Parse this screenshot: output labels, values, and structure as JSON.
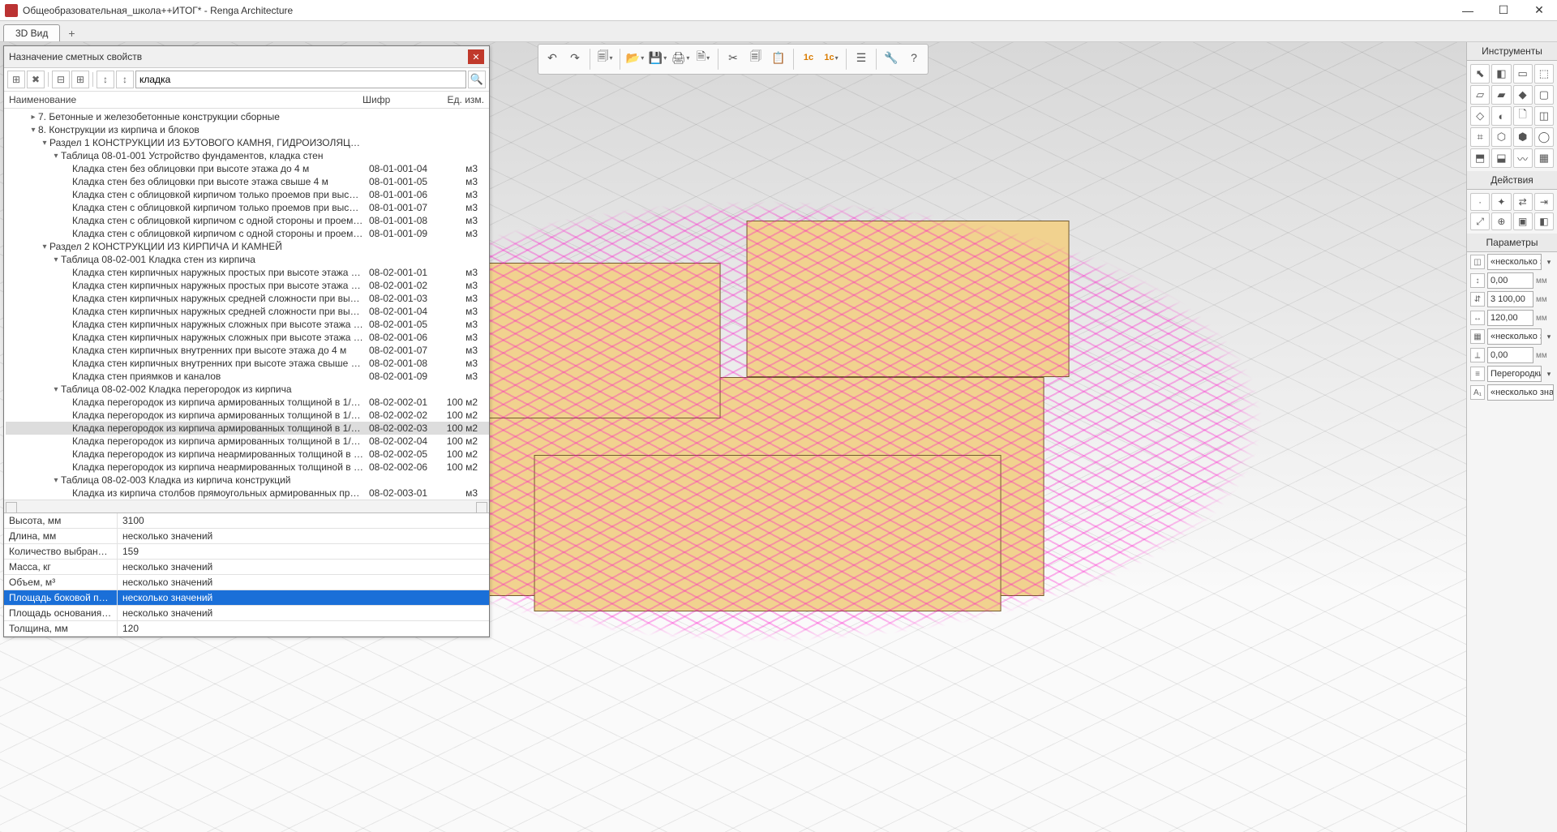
{
  "window": {
    "title": "Общеобразовательная_школа++ИТОГ* - Renga Architecture"
  },
  "tabs": {
    "active": "3D Вид"
  },
  "colors": {
    "magenta": "#ff00c8",
    "buildFill": "#f1d28f",
    "buildStroke": "#735a2f",
    "dlgClose": "#c0392b",
    "rowSel": "#1a6fd8"
  },
  "topToolbar": [
    {
      "icon": "↶",
      "name": "undo"
    },
    {
      "icon": "↷",
      "name": "redo"
    },
    {
      "sep": true
    },
    {
      "icon": "🗐",
      "name": "copy-view",
      "dd": true
    },
    {
      "sep": true
    },
    {
      "icon": "📂",
      "name": "open",
      "dd": true
    },
    {
      "icon": "💾",
      "name": "save",
      "dd": true
    },
    {
      "icon": "🖨",
      "name": "print",
      "dd": true
    },
    {
      "icon": "🗎",
      "name": "sheet",
      "dd": true
    },
    {
      "sep": true
    },
    {
      "icon": "✂",
      "name": "cut"
    },
    {
      "icon": "🗐",
      "name": "copy"
    },
    {
      "icon": "📋",
      "name": "paste"
    },
    {
      "sep": true
    },
    {
      "icon": "1c",
      "name": "export-1c",
      "style": "color:#d97b00;font-weight:bold;font-size:11px;"
    },
    {
      "icon": "1c",
      "name": "export-1c-2",
      "style": "color:#d97b00;font-weight:bold;font-size:11px;",
      "dd": true
    },
    {
      "sep": true
    },
    {
      "icon": "☰",
      "name": "properties"
    },
    {
      "sep": true
    },
    {
      "icon": "🔧",
      "name": "settings"
    },
    {
      "icon": "?",
      "name": "help"
    }
  ],
  "toolsPanel": {
    "title": "Инструменты",
    "items": [
      "⬉",
      "◧",
      "▭",
      "⬚",
      "▱",
      "▰",
      "◆",
      "▢",
      "◇",
      "◐",
      "🗋",
      "◫",
      "⌗",
      "⬡",
      "⬢",
      "◯",
      "⬒",
      "⬓",
      "〰",
      "▦"
    ]
  },
  "actionsPanel": {
    "title": "Действия",
    "items": [
      "·",
      "✦",
      "⇄",
      "⇥",
      "⤢",
      "⊕",
      "▣",
      "◧"
    ]
  },
  "paramsPanel": {
    "title": "Параметры",
    "rows": [
      {
        "icon": "◫",
        "value": "«несколько зн",
        "dd": true
      },
      {
        "icon": "↕",
        "value": "0,00",
        "unit": "мм"
      },
      {
        "icon": "⇵",
        "value": "3 100,00",
        "unit": "мм"
      },
      {
        "icon": "↔",
        "value": "120,00",
        "unit": "мм"
      },
      {
        "icon": "▦",
        "value": "«несколько зн",
        "dd": true
      },
      {
        "icon": "⟂",
        "value": "0,00",
        "unit": "мм"
      },
      {
        "icon": "≡",
        "value": "Перегородки",
        "dd": true
      },
      {
        "icon": "A₁",
        "value": "«несколько знач"
      }
    ]
  },
  "dialog": {
    "title": "Назначение сметных свойств",
    "toolbar": [
      "⊞",
      "✖",
      "",
      "⊟",
      "⊞",
      "",
      "↕",
      "↕"
    ],
    "search": "кладка",
    "headers": {
      "name": "Наименование",
      "code": "Шифр",
      "unit": "Ед. изм."
    },
    "tree": [
      {
        "d": 2,
        "car": ">",
        "nm": "7. Бетонные и железобетонные конструкции сборные"
      },
      {
        "d": 2,
        "car": "v",
        "nm": "8. Конструкции из кирпича и блоков"
      },
      {
        "d": 3,
        "car": "v",
        "nm": "Раздел 1 КОНСТРУКЦИИ ИЗ БУТОВОГО КАМНЯ, ГИДРОИЗОЛЯЦИЯ И …"
      },
      {
        "d": 4,
        "car": "v",
        "nm": "Таблица 08-01-001 Устройство фундаментов, кладка стен"
      },
      {
        "d": 5,
        "nm": "Кладка стен без облицовки при высоте этажа до 4 м",
        "code": "08-01-001-04",
        "unit": "м3"
      },
      {
        "d": 5,
        "nm": "Кладка стен без облицовки при высоте этажа свыше 4 м",
        "code": "08-01-001-05",
        "unit": "м3"
      },
      {
        "d": 5,
        "nm": "Кладка стен с облицовкой кирпичом только проемов при высо…",
        "code": "08-01-001-06",
        "unit": "м3"
      },
      {
        "d": 5,
        "nm": "Кладка стен с облицовкой кирпичом только проемов при высо…",
        "code": "08-01-001-07",
        "unit": "м3"
      },
      {
        "d": 5,
        "nm": "Кладка стен с облицовкой кирпичом с одной стороны и проем…",
        "code": "08-01-001-08",
        "unit": "м3"
      },
      {
        "d": 5,
        "nm": "Кладка стен с облицовкой кирпичом с одной стороны и проем…",
        "code": "08-01-001-09",
        "unit": "м3"
      },
      {
        "d": 3,
        "car": "v",
        "nm": "Раздел 2 КОНСТРУКЦИИ ИЗ КИРПИЧА И КАМНЕЙ"
      },
      {
        "d": 4,
        "car": "v",
        "nm": "Таблица 08-02-001 Кладка стен из кирпича"
      },
      {
        "d": 5,
        "nm": "Кладка стен кирпичных наружных простых при высоте этажа до…",
        "code": "08-02-001-01",
        "unit": "м3"
      },
      {
        "d": 5,
        "nm": "Кладка стен кирпичных наружных простых при высоте этажа св…",
        "code": "08-02-001-02",
        "unit": "м3"
      },
      {
        "d": 5,
        "nm": "Кладка стен кирпичных наружных средней сложности при высо…",
        "code": "08-02-001-03",
        "unit": "м3"
      },
      {
        "d": 5,
        "nm": "Кладка стен кирпичных наружных средней сложности при высо…",
        "code": "08-02-001-04",
        "unit": "м3"
      },
      {
        "d": 5,
        "nm": "Кладка стен кирпичных наружных сложных при высоте этажа до…",
        "code": "08-02-001-05",
        "unit": "м3"
      },
      {
        "d": 5,
        "nm": "Кладка стен кирпичных наружных сложных при высоте этажа св…",
        "code": "08-02-001-06",
        "unit": "м3"
      },
      {
        "d": 5,
        "nm": "Кладка стен кирпичных внутренних при высоте этажа до 4 м",
        "code": "08-02-001-07",
        "unit": "м3"
      },
      {
        "d": 5,
        "nm": "Кладка стен кирпичных внутренних при высоте этажа свыше 5 м",
        "code": "08-02-001-08",
        "unit": "м3"
      },
      {
        "d": 5,
        "nm": "Кладка стен приямков и каналов",
        "code": "08-02-001-09",
        "unit": "м3"
      },
      {
        "d": 4,
        "car": "v",
        "nm": "Таблица 08-02-002 Кладка перегородок из кирпича"
      },
      {
        "d": 5,
        "nm": "Кладка перегородок из кирпича армированных толщиной в 1/4 …",
        "code": "08-02-002-01",
        "unit": "100 м2"
      },
      {
        "d": 5,
        "nm": "Кладка перегородок из кирпича армированных толщиной в 1/4 …",
        "code": "08-02-002-02",
        "unit": "100 м2"
      },
      {
        "d": 5,
        "nm": "Кладка перегородок из кирпича армированных толщиной в 1/2 …",
        "code": "08-02-002-03",
        "unit": "100 м2",
        "sel": true
      },
      {
        "d": 5,
        "nm": "Кладка перегородок из кирпича армированных толщиной в 1/2 …",
        "code": "08-02-002-04",
        "unit": "100 м2"
      },
      {
        "d": 5,
        "nm": "Кладка перегородок из кирпича неармированных толщиной в 1…",
        "code": "08-02-002-05",
        "unit": "100 м2"
      },
      {
        "d": 5,
        "nm": "Кладка перегородок из кирпича неармированных толщиной в 1…",
        "code": "08-02-002-06",
        "unit": "100 м2"
      },
      {
        "d": 4,
        "car": "v",
        "nm": "Таблица 08-02-003 Кладка из кирпича конструкций"
      },
      {
        "d": 5,
        "nm": "Кладка из кирпича столбов прямоугольных армированных при …",
        "code": "08-02-003-01",
        "unit": "м3"
      },
      {
        "d": 5,
        "nm": "Кладка из кирпича столбов прямоугольных армированных при …",
        "code": "08-02-003-02",
        "unit": "м3"
      },
      {
        "d": 5,
        "nm": "Кладка из кирпича столбов прямоугольных неармированных пр…",
        "code": "08-02-003-03",
        "unit": "м3"
      },
      {
        "d": 5,
        "nm": "Кладка из кирпича столбов прямоугольных неармированных пр…",
        "code": "08-02-003-04",
        "unit": "м3"
      },
      {
        "d": 5,
        "nm": "Кладка из кирпича столбов круглых при высоте этажа до 4 м",
        "code": "08-02-003-05",
        "unit": "м3"
      },
      {
        "d": 5,
        "nm": "Кладка из кирпича столбов круглых при высоте этажа свыше 4 м",
        "code": "08-02-003-06",
        "unit": "м3"
      },
      {
        "d": 5,
        "nm": "Кладка из кирпича беседок, портиков и других декоративных ко…",
        "code": "08-02-003-07",
        "unit": "м3"
      }
    ],
    "props": [
      {
        "k": "Высота, мм",
        "v": "3100"
      },
      {
        "k": "Длина, мм",
        "v": "несколько значений"
      },
      {
        "k": "Количество выбран…",
        "v": "159"
      },
      {
        "k": "Масса, кг",
        "v": "несколько значений"
      },
      {
        "k": "Объем, м³",
        "v": "несколько значений"
      },
      {
        "k": "Площадь боковой п…",
        "v": "несколько значений",
        "sel": true
      },
      {
        "k": "Площадь основания…",
        "v": "несколько значений"
      },
      {
        "k": "Толщина, мм",
        "v": "120"
      }
    ]
  }
}
